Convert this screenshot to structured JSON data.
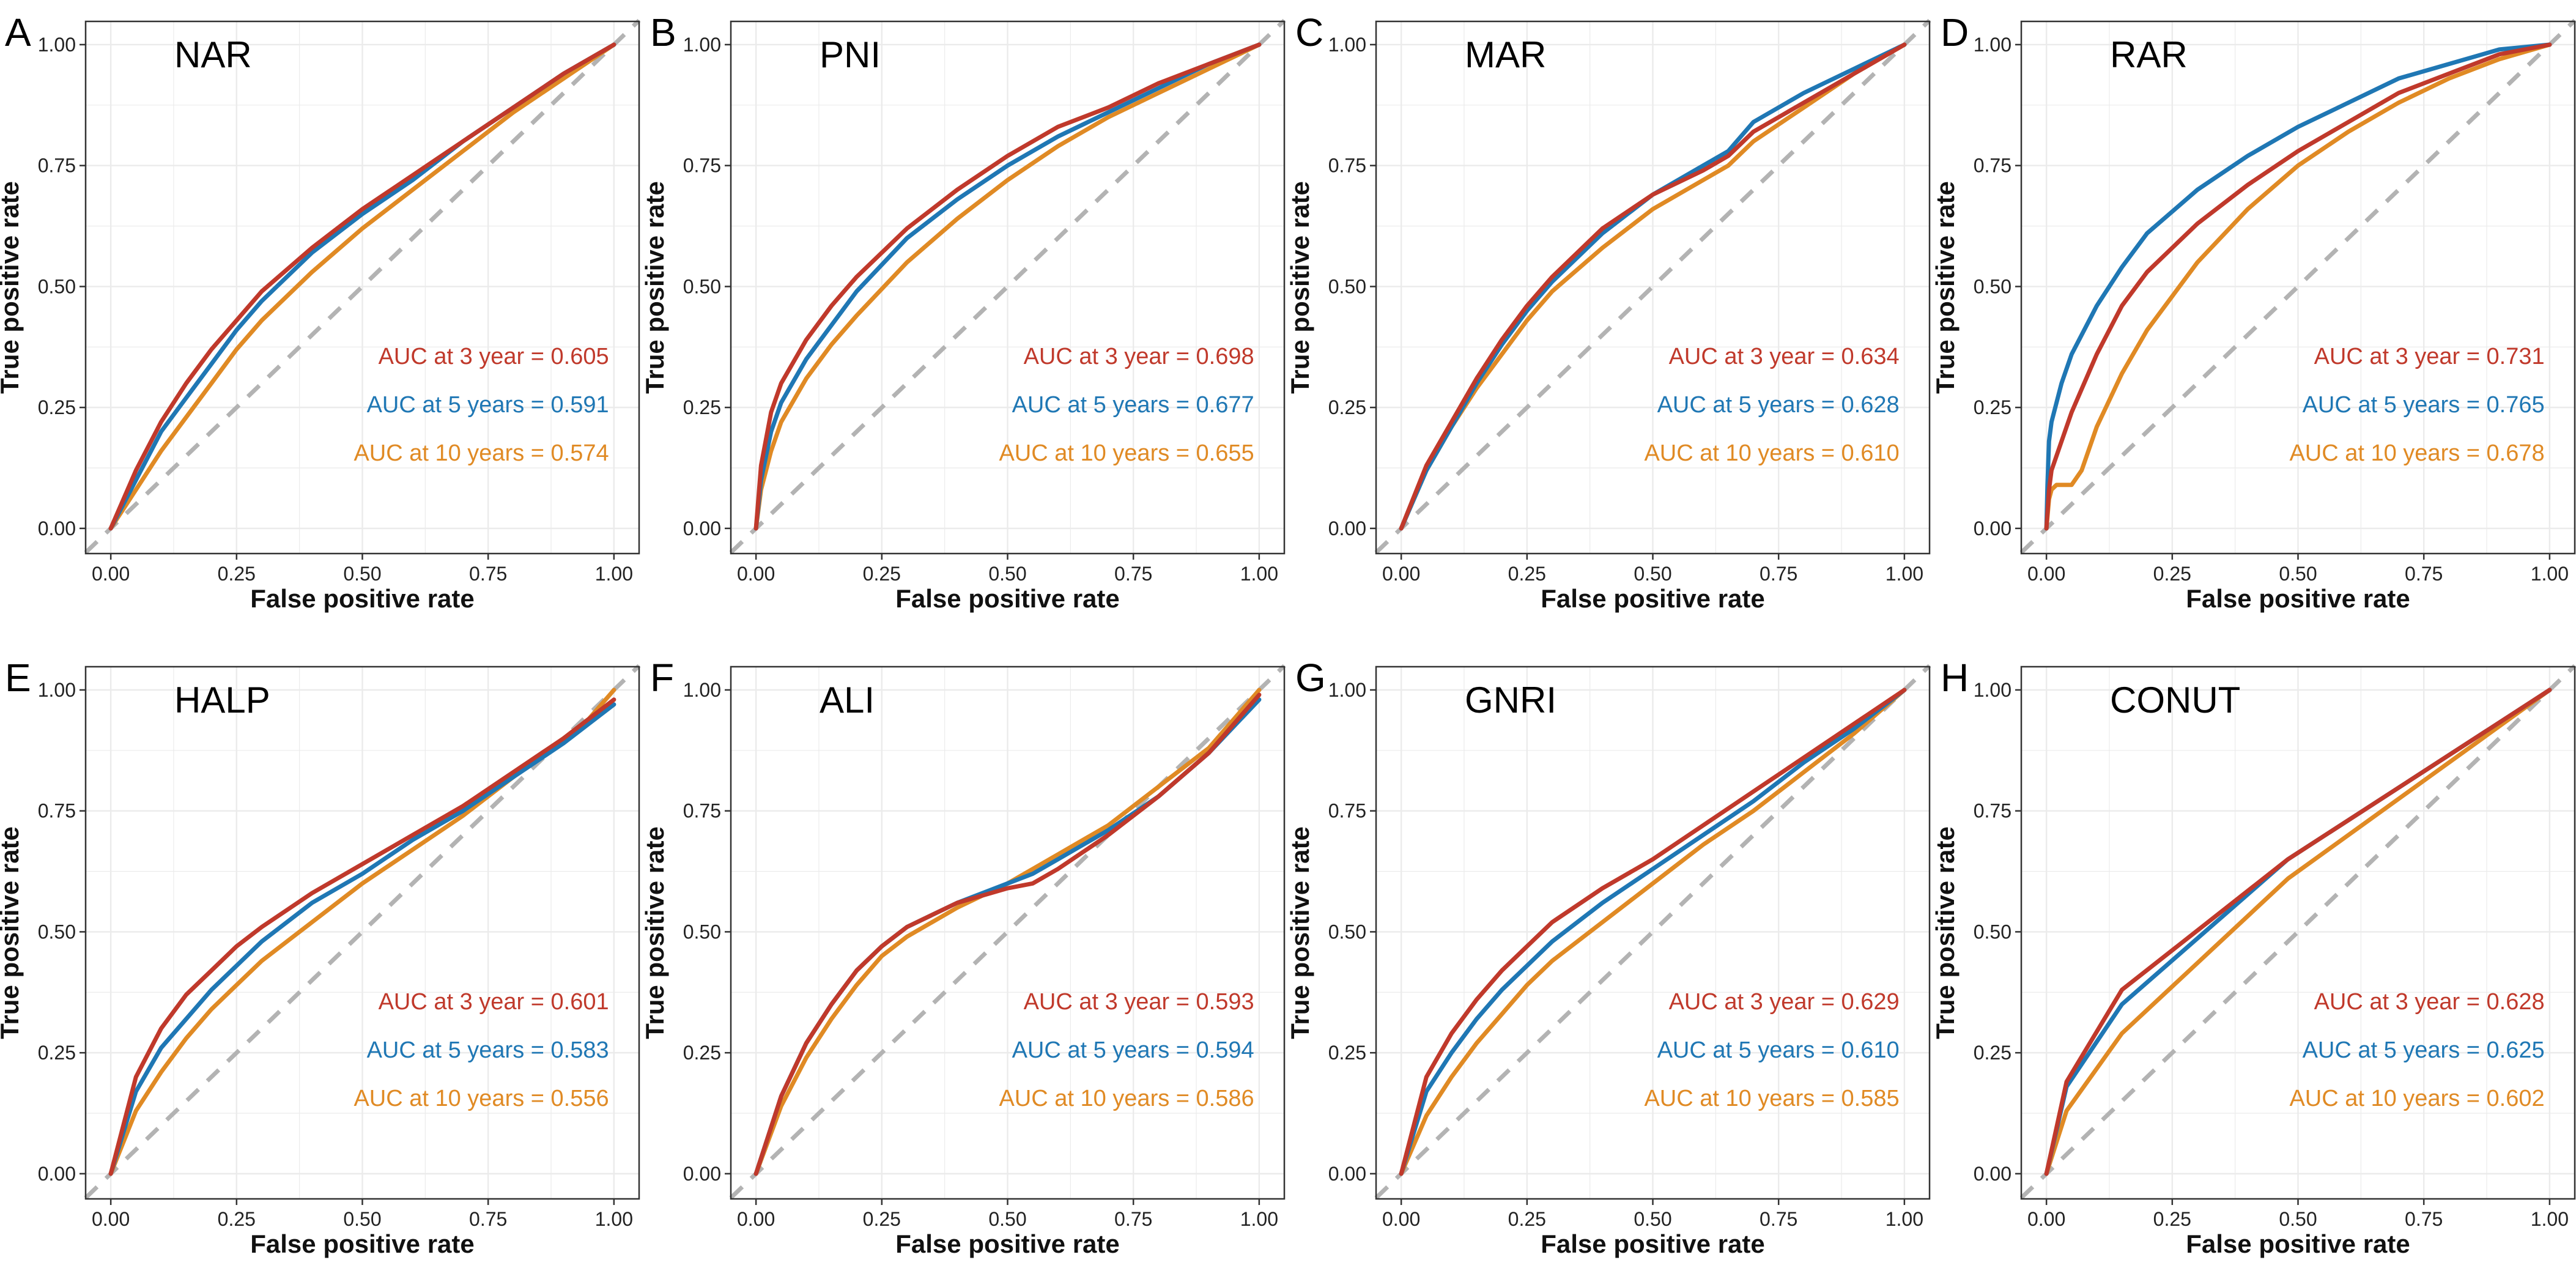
{
  "figure": {
    "name": "roc-curves-figure"
  },
  "common": {
    "xlabel": "False positive rate",
    "ylabel": "True positive rate",
    "xlim": [
      0,
      1
    ],
    "ylim": [
      0,
      1
    ],
    "ticks": [
      "0.00",
      "0.25",
      "0.50",
      "0.75",
      "1.00"
    ],
    "tick_values": [
      0,
      0.25,
      0.5,
      0.75,
      1.0
    ],
    "colors": {
      "3y": "#c0392b",
      "5y": "#1f77b4",
      "10y": "#e08a24",
      "ref": "#b3b3b3",
      "grid": "#ebebeb",
      "border": "#333333"
    }
  },
  "chart_data": [
    {
      "type": "line",
      "panel": "A",
      "title": "NAR",
      "xlabel": "False positive rate",
      "ylabel": "True positive rate",
      "xlim": [
        0,
        1
      ],
      "ylim": [
        0,
        1
      ],
      "annotations": [
        "AUC at 3 year = 0.605",
        "AUC at 5 years = 0.591",
        "AUC at 10 years = 0.574"
      ],
      "series": [
        {
          "name": "3 year",
          "key": "3y",
          "x": [
            0,
            0.05,
            0.1,
            0.15,
            0.2,
            0.25,
            0.3,
            0.4,
            0.5,
            0.6,
            0.7,
            0.8,
            0.9,
            1
          ],
          "y": [
            0,
            0.12,
            0.22,
            0.3,
            0.37,
            0.43,
            0.49,
            0.58,
            0.66,
            0.73,
            0.8,
            0.87,
            0.94,
            1
          ]
        },
        {
          "name": "5 years",
          "key": "5y",
          "x": [
            0,
            0.05,
            0.1,
            0.15,
            0.2,
            0.25,
            0.3,
            0.4,
            0.5,
            0.6,
            0.7,
            0.8,
            0.9,
            1
          ],
          "y": [
            0,
            0.1,
            0.2,
            0.27,
            0.34,
            0.41,
            0.47,
            0.57,
            0.65,
            0.72,
            0.8,
            0.87,
            0.94,
            1
          ]
        },
        {
          "name": "10 years",
          "key": "10y",
          "x": [
            0,
            0.05,
            0.1,
            0.15,
            0.2,
            0.25,
            0.3,
            0.4,
            0.5,
            0.6,
            0.7,
            0.8,
            0.9,
            1
          ],
          "y": [
            0,
            0.08,
            0.16,
            0.23,
            0.3,
            0.37,
            0.43,
            0.53,
            0.62,
            0.7,
            0.78,
            0.86,
            0.93,
            1
          ]
        }
      ]
    },
    {
      "type": "line",
      "panel": "B",
      "title": "PNI",
      "xlabel": "False positive rate",
      "ylabel": "True positive rate",
      "xlim": [
        0,
        1
      ],
      "ylim": [
        0,
        1
      ],
      "annotations": [
        "AUC at 3 year = 0.698",
        "AUC at 5 years = 0.677",
        "AUC at 10 years = 0.655"
      ],
      "series": [
        {
          "name": "3 year",
          "key": "3y",
          "x": [
            0,
            0.01,
            0.03,
            0.05,
            0.1,
            0.15,
            0.2,
            0.3,
            0.4,
            0.5,
            0.6,
            0.7,
            0.8,
            0.9,
            1
          ],
          "y": [
            0,
            0.13,
            0.24,
            0.3,
            0.39,
            0.46,
            0.52,
            0.62,
            0.7,
            0.77,
            0.83,
            0.87,
            0.92,
            0.96,
            1
          ]
        },
        {
          "name": "5 years",
          "key": "5y",
          "x": [
            0,
            0.01,
            0.03,
            0.05,
            0.1,
            0.15,
            0.2,
            0.3,
            0.4,
            0.5,
            0.6,
            0.7,
            0.8,
            0.9,
            1
          ],
          "y": [
            0,
            0.1,
            0.2,
            0.26,
            0.35,
            0.42,
            0.49,
            0.6,
            0.68,
            0.75,
            0.81,
            0.86,
            0.91,
            0.96,
            1
          ]
        },
        {
          "name": "10 years",
          "key": "10y",
          "x": [
            0,
            0.01,
            0.03,
            0.05,
            0.1,
            0.15,
            0.2,
            0.3,
            0.4,
            0.5,
            0.6,
            0.7,
            0.8,
            0.9,
            1
          ],
          "y": [
            0,
            0.08,
            0.16,
            0.22,
            0.31,
            0.38,
            0.44,
            0.55,
            0.64,
            0.72,
            0.79,
            0.85,
            0.9,
            0.95,
            1
          ]
        }
      ]
    },
    {
      "type": "line",
      "panel": "C",
      "title": "MAR",
      "xlabel": "False positive rate",
      "ylabel": "True positive rate",
      "xlim": [
        0,
        1
      ],
      "ylim": [
        0,
        1
      ],
      "annotations": [
        "AUC at 3 year = 0.634",
        "AUC at 5 years = 0.628",
        "AUC at 10 years = 0.610"
      ],
      "series": [
        {
          "name": "3 year",
          "key": "3y",
          "x": [
            0,
            0.05,
            0.1,
            0.15,
            0.2,
            0.25,
            0.3,
            0.4,
            0.5,
            0.6,
            0.65,
            0.7,
            0.8,
            0.9,
            1
          ],
          "y": [
            0,
            0.13,
            0.22,
            0.31,
            0.39,
            0.46,
            0.52,
            0.62,
            0.69,
            0.74,
            0.77,
            0.82,
            0.88,
            0.94,
            1
          ]
        },
        {
          "name": "5 years",
          "key": "5y",
          "x": [
            0,
            0.05,
            0.1,
            0.15,
            0.2,
            0.25,
            0.3,
            0.4,
            0.5,
            0.6,
            0.65,
            0.7,
            0.8,
            0.9,
            1
          ],
          "y": [
            0,
            0.12,
            0.21,
            0.3,
            0.38,
            0.45,
            0.51,
            0.61,
            0.69,
            0.75,
            0.78,
            0.84,
            0.9,
            0.95,
            1
          ]
        },
        {
          "name": "10 years",
          "key": "10y",
          "x": [
            0,
            0.05,
            0.1,
            0.15,
            0.2,
            0.25,
            0.3,
            0.4,
            0.5,
            0.6,
            0.65,
            0.7,
            0.8,
            0.9,
            1
          ],
          "y": [
            0,
            0.12,
            0.21,
            0.29,
            0.36,
            0.43,
            0.49,
            0.58,
            0.66,
            0.72,
            0.75,
            0.8,
            0.87,
            0.94,
            1
          ]
        }
      ]
    },
    {
      "type": "line",
      "panel": "D",
      "title": "RAR",
      "xlabel": "False positive rate",
      "ylabel": "True positive rate",
      "xlim": [
        0,
        1
      ],
      "ylim": [
        0,
        1
      ],
      "annotations": [
        "AUC at 3 year = 0.731",
        "AUC at 5 years = 0.765",
        "AUC at 10 years = 0.678"
      ],
      "series": [
        {
          "name": "3 year",
          "key": "3y",
          "x": [
            0,
            0.005,
            0.01,
            0.03,
            0.05,
            0.1,
            0.15,
            0.2,
            0.3,
            0.4,
            0.5,
            0.6,
            0.7,
            0.8,
            0.9,
            1
          ],
          "y": [
            0,
            0.08,
            0.12,
            0.18,
            0.24,
            0.36,
            0.46,
            0.53,
            0.63,
            0.71,
            0.78,
            0.84,
            0.9,
            0.94,
            0.98,
            1
          ]
        },
        {
          "name": "5 years",
          "key": "5y",
          "x": [
            0,
            0.002,
            0.005,
            0.01,
            0.03,
            0.05,
            0.1,
            0.15,
            0.2,
            0.3,
            0.4,
            0.5,
            0.6,
            0.7,
            0.8,
            0.9,
            1
          ],
          "y": [
            0,
            0.09,
            0.18,
            0.22,
            0.3,
            0.36,
            0.46,
            0.54,
            0.61,
            0.7,
            0.77,
            0.83,
            0.88,
            0.93,
            0.96,
            0.99,
            1
          ]
        },
        {
          "name": "10 years",
          "key": "10y",
          "x": [
            0,
            0.005,
            0.01,
            0.02,
            0.05,
            0.07,
            0.1,
            0.15,
            0.2,
            0.3,
            0.4,
            0.5,
            0.6,
            0.7,
            0.8,
            0.9,
            1
          ],
          "y": [
            0,
            0.06,
            0.08,
            0.09,
            0.09,
            0.12,
            0.21,
            0.32,
            0.41,
            0.55,
            0.66,
            0.75,
            0.82,
            0.88,
            0.93,
            0.97,
            1
          ]
        }
      ]
    },
    {
      "type": "line",
      "panel": "E",
      "title": "HALP",
      "xlabel": "False positive rate",
      "ylabel": "True positive rate",
      "xlim": [
        0,
        1
      ],
      "ylim": [
        0,
        1
      ],
      "annotations": [
        "AUC at 3 year = 0.601",
        "AUC at 5 years = 0.583",
        "AUC at 10 years = 0.556"
      ],
      "series": [
        {
          "name": "3 year",
          "key": "3y",
          "x": [
            0,
            0.05,
            0.1,
            0.15,
            0.2,
            0.25,
            0.3,
            0.4,
            0.5,
            0.6,
            0.7,
            0.8,
            0.9,
            0.95,
            1
          ],
          "y": [
            0,
            0.2,
            0.3,
            0.37,
            0.42,
            0.47,
            0.51,
            0.58,
            0.64,
            0.7,
            0.76,
            0.83,
            0.9,
            0.94,
            0.98
          ]
        },
        {
          "name": "5 years",
          "key": "5y",
          "x": [
            0,
            0.05,
            0.1,
            0.15,
            0.2,
            0.25,
            0.3,
            0.4,
            0.5,
            0.6,
            0.7,
            0.8,
            0.9,
            0.95,
            1
          ],
          "y": [
            0,
            0.17,
            0.26,
            0.32,
            0.38,
            0.43,
            0.48,
            0.56,
            0.62,
            0.69,
            0.75,
            0.82,
            0.89,
            0.93,
            0.97
          ]
        },
        {
          "name": "10 years",
          "key": "10y",
          "x": [
            0,
            0.05,
            0.1,
            0.15,
            0.2,
            0.25,
            0.3,
            0.4,
            0.5,
            0.6,
            0.7,
            0.8,
            0.9,
            0.95,
            1
          ],
          "y": [
            0,
            0.13,
            0.21,
            0.28,
            0.34,
            0.39,
            0.44,
            0.52,
            0.6,
            0.67,
            0.74,
            0.82,
            0.9,
            0.94,
            1
          ]
        }
      ]
    },
    {
      "type": "line",
      "panel": "F",
      "title": "ALI",
      "xlabel": "False positive rate",
      "ylabel": "True positive rate",
      "xlim": [
        0,
        1
      ],
      "ylim": [
        0,
        1
      ],
      "annotations": [
        "AUC at 3 year = 0.593",
        "AUC at 5 years = 0.594",
        "AUC at 10 years = 0.586"
      ],
      "series": [
        {
          "name": "3 year",
          "key": "3y",
          "x": [
            0,
            0.05,
            0.1,
            0.15,
            0.2,
            0.25,
            0.3,
            0.4,
            0.5,
            0.55,
            0.6,
            0.7,
            0.8,
            0.9,
            1
          ],
          "y": [
            0,
            0.16,
            0.27,
            0.35,
            0.42,
            0.47,
            0.51,
            0.56,
            0.59,
            0.6,
            0.63,
            0.7,
            0.78,
            0.87,
            0.99
          ]
        },
        {
          "name": "5 years",
          "key": "5y",
          "x": [
            0,
            0.05,
            0.1,
            0.15,
            0.2,
            0.25,
            0.3,
            0.4,
            0.5,
            0.55,
            0.6,
            0.7,
            0.8,
            0.9,
            1
          ],
          "y": [
            0,
            0.16,
            0.27,
            0.35,
            0.42,
            0.47,
            0.51,
            0.56,
            0.6,
            0.62,
            0.65,
            0.71,
            0.78,
            0.87,
            0.98
          ]
        },
        {
          "name": "10 years",
          "key": "10y",
          "x": [
            0,
            0.05,
            0.1,
            0.15,
            0.2,
            0.25,
            0.3,
            0.4,
            0.5,
            0.55,
            0.6,
            0.7,
            0.8,
            0.9,
            1
          ],
          "y": [
            0,
            0.14,
            0.24,
            0.32,
            0.39,
            0.45,
            0.49,
            0.55,
            0.6,
            0.63,
            0.66,
            0.72,
            0.8,
            0.88,
            1
          ]
        }
      ]
    },
    {
      "type": "line",
      "panel": "G",
      "title": "GNRI",
      "xlabel": "False positive rate",
      "ylabel": "True positive rate",
      "xlim": [
        0,
        1
      ],
      "ylim": [
        0,
        1
      ],
      "annotations": [
        "AUC at 3 year = 0.629",
        "AUC at 5 years = 0.610",
        "AUC at 10 years = 0.585"
      ],
      "series": [
        {
          "name": "3 year",
          "key": "3y",
          "x": [
            0,
            0.05,
            0.1,
            0.15,
            0.2,
            0.25,
            0.3,
            0.4,
            0.5,
            0.6,
            0.7,
            0.8,
            0.9,
            1
          ],
          "y": [
            0,
            0.2,
            0.29,
            0.36,
            0.42,
            0.47,
            0.52,
            0.59,
            0.65,
            0.72,
            0.79,
            0.86,
            0.93,
            1
          ]
        },
        {
          "name": "5 years",
          "key": "5y",
          "x": [
            0,
            0.05,
            0.1,
            0.15,
            0.2,
            0.25,
            0.3,
            0.4,
            0.5,
            0.6,
            0.7,
            0.8,
            0.9,
            1
          ],
          "y": [
            0,
            0.17,
            0.25,
            0.32,
            0.38,
            0.43,
            0.48,
            0.56,
            0.63,
            0.7,
            0.77,
            0.85,
            0.92,
            1
          ]
        },
        {
          "name": "10 years",
          "key": "10y",
          "x": [
            0,
            0.05,
            0.1,
            0.15,
            0.2,
            0.25,
            0.3,
            0.4,
            0.5,
            0.6,
            0.7,
            0.8,
            0.9,
            1
          ],
          "y": [
            0,
            0.12,
            0.2,
            0.27,
            0.33,
            0.39,
            0.44,
            0.52,
            0.6,
            0.68,
            0.75,
            0.83,
            0.91,
            1
          ]
        }
      ]
    },
    {
      "type": "line",
      "panel": "H",
      "title": "CONUT",
      "xlabel": "False positive rate",
      "ylabel": "True positive rate",
      "xlim": [
        0,
        1
      ],
      "ylim": [
        0,
        1
      ],
      "annotations": [
        "AUC at 3 year = 0.628",
        "AUC at 5 years = 0.625",
        "AUC at 10 years = 0.602"
      ],
      "series": [
        {
          "name": "3 year",
          "key": "3y",
          "x": [
            0,
            0.04,
            0.15,
            0.48,
            1
          ],
          "y": [
            0,
            0.19,
            0.38,
            0.65,
            1
          ]
        },
        {
          "name": "5 years",
          "key": "5y",
          "x": [
            0,
            0.04,
            0.15,
            0.48,
            1
          ],
          "y": [
            0,
            0.18,
            0.35,
            0.65,
            1
          ]
        },
        {
          "name": "10 years",
          "key": "10y",
          "x": [
            0,
            0.04,
            0.15,
            0.48,
            1
          ],
          "y": [
            0,
            0.13,
            0.29,
            0.61,
            1
          ]
        }
      ]
    }
  ]
}
